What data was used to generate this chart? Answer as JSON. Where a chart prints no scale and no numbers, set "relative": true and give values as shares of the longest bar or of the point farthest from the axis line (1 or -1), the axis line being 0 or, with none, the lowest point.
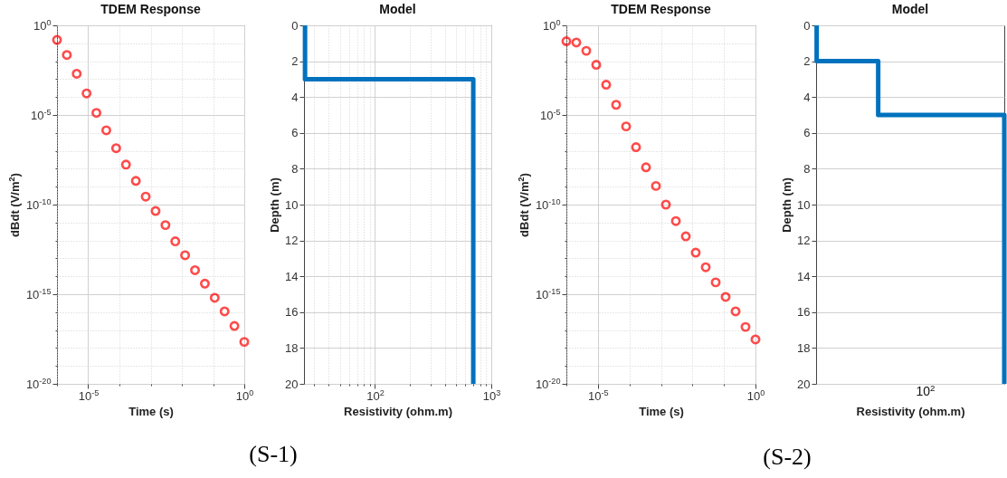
{
  "chart_data": [
    {
      "type": "scatter",
      "title": "TDEM Response",
      "xlabel": "Time (s)",
      "ylabel": "dBdt (V/m$^{2}$)",
      "color": "#ff0000",
      "marker": "circle",
      "log": "xy",
      "grid": true,
      "x": [
        1e-06,
        2.07e-06,
        4.28e-06,
        8.86e-06,
        1.83e-05,
        3.79e-05,
        7.85e-05,
        0.000162,
        0.000336,
        0.000695,
        0.00144,
        0.00298,
        0.00616,
        0.0127,
        0.0264,
        0.0546,
        0.113,
        0.234,
        0.483,
        1
      ],
      "values": [
        0.155,
        0.0224,
        0.002,
        0.00016,
        1.3e-05,
        1.4e-06,
        1.4e-07,
        1.7e-08,
        2.1e-09,
        2.8e-10,
        4.4e-11,
        7.2e-12,
        8.9e-13,
        1.5e-13,
        2.2e-14,
        3.9e-15,
        6.3e-16,
        1.1e-16,
        1.7e-17,
        2.2e-18
      ],
      "xlim": [
        1e-06,
        1
      ],
      "ylim": [
        1e-20,
        1
      ],
      "xticks": [
        {
          "value": 1e-06,
          "label": null
        },
        {
          "value": 1e-05,
          "label": "10$^{-5}$"
        },
        {
          "value": 0.0001,
          "label": null
        },
        {
          "value": 0.001,
          "label": null
        },
        {
          "value": 0.01,
          "label": null
        },
        {
          "value": 0.1,
          "label": null
        },
        {
          "value": 1,
          "label": "10$^{0}$"
        }
      ],
      "yticks": [
        {
          "value": 1e-20,
          "label": "10$^{-20}$"
        },
        {
          "value": 1e-19,
          "label": null
        },
        {
          "value": 1e-18,
          "label": null
        },
        {
          "value": 1e-17,
          "label": null
        },
        {
          "value": 1e-16,
          "label": null
        },
        {
          "value": 1e-15,
          "label": "10$^{-15}$"
        },
        {
          "value": 1e-14,
          "label": null
        },
        {
          "value": 1e-13,
          "label": null
        },
        {
          "value": 1e-12,
          "label": null
        },
        {
          "value": 1e-11,
          "label": null
        },
        {
          "value": 1e-10,
          "label": "10$^{-10}$"
        },
        {
          "value": 1e-09,
          "label": null
        },
        {
          "value": 1e-08,
          "label": null
        },
        {
          "value": 1e-07,
          "label": null
        },
        {
          "value": 1e-06,
          "label": null
        },
        {
          "value": 1e-05,
          "label": "10$^{-5}$"
        },
        {
          "value": 0.0001,
          "label": null
        },
        {
          "value": 0.001,
          "label": null
        },
        {
          "value": 0.01,
          "label": null
        },
        {
          "value": 0.1,
          "label": null
        },
        {
          "value": 1,
          "label": "10$^{0}$"
        }
      ],
      "annotations": [
        "(S-1)"
      ]
    },
    {
      "type": "line",
      "title": "Model",
      "xlabel": "Resistivity (ohm.m)",
      "ylabel": "Depth (m)",
      "color": "#0072bd",
      "line_style": "solid",
      "log": "x",
      "grid": true,
      "x": [
        25,
        25,
        700,
        700
      ],
      "values": [
        0,
        3,
        3,
        20
      ],
      "xlim": [
        24.5,
        1000
      ],
      "ylim": [
        20,
        0
      ],
      "xticks": [
        {
          "value": 30,
          "label": null
        },
        {
          "value": 40,
          "label": null
        },
        {
          "value": 50,
          "label": null
        },
        {
          "value": 60,
          "label": null
        },
        {
          "value": 70,
          "label": null
        },
        {
          "value": 80,
          "label": null
        },
        {
          "value": 90,
          "label": null
        },
        {
          "value": 100,
          "label": "10$^{2}$"
        },
        {
          "value": 200,
          "label": null
        },
        {
          "value": 300,
          "label": null
        },
        {
          "value": 400,
          "label": null
        },
        {
          "value": 500,
          "label": null
        },
        {
          "value": 600,
          "label": null
        },
        {
          "value": 700,
          "label": null
        },
        {
          "value": 800,
          "label": null
        },
        {
          "value": 900,
          "label": null
        },
        {
          "value": 1000,
          "label": "10$^{3}$"
        }
      ],
      "yticks": [
        0,
        2,
        4,
        6,
        8,
        10,
        12,
        14,
        16,
        18,
        20
      ]
    },
    {
      "type": "scatter",
      "title": "TDEM Response",
      "xlabel": "Time (s)",
      "ylabel": "dBdt (V/m$^{2}$)",
      "color": "#ff0000",
      "marker": "circle",
      "log": "xy",
      "grid": true,
      "x": [
        1e-06,
        2.07e-06,
        4.28e-06,
        8.86e-06,
        1.83e-05,
        3.79e-05,
        7.85e-05,
        0.000162,
        0.000336,
        0.000695,
        0.00144,
        0.00298,
        0.00616,
        0.0127,
        0.0264,
        0.0546,
        0.113,
        0.234,
        0.483,
        1
      ],
      "values": [
        0.13,
        0.11,
        0.038,
        0.0063,
        0.00049,
        3.7e-05,
        2.3e-06,
        1.6e-07,
        1.2e-08,
        1.1e-09,
        1e-10,
        1.2e-11,
        1.7e-12,
        2.1e-13,
        3.2e-14,
        4.6e-15,
        7.1e-16,
        1.1e-16,
        1.5e-17,
        3e-18
      ],
      "xlim": [
        1e-06,
        1
      ],
      "ylim": [
        1e-20,
        1
      ],
      "xticks": [
        {
          "value": 1e-06,
          "label": null
        },
        {
          "value": 1e-05,
          "label": "10$^{-5}$"
        },
        {
          "value": 0.0001,
          "label": null
        },
        {
          "value": 0.001,
          "label": null
        },
        {
          "value": 0.01,
          "label": null
        },
        {
          "value": 0.1,
          "label": null
        },
        {
          "value": 1,
          "label": "10$^{0}$"
        }
      ],
      "yticks": [
        {
          "value": 1e-20,
          "label": "10$^{-20}$"
        },
        {
          "value": 1e-19,
          "label": null
        },
        {
          "value": 1e-18,
          "label": null
        },
        {
          "value": 1e-17,
          "label": null
        },
        {
          "value": 1e-16,
          "label": null
        },
        {
          "value": 1e-15,
          "label": "10$^{-15}$"
        },
        {
          "value": 1e-14,
          "label": null
        },
        {
          "value": 1e-13,
          "label": null
        },
        {
          "value": 1e-12,
          "label": null
        },
        {
          "value": 1e-11,
          "label": null
        },
        {
          "value": 1e-10,
          "label": "10$^{-10}$"
        },
        {
          "value": 1e-09,
          "label": null
        },
        {
          "value": 1e-08,
          "label": null
        },
        {
          "value": 1e-07,
          "label": null
        },
        {
          "value": 1e-06,
          "label": null
        },
        {
          "value": 1e-05,
          "label": "10$^{-5}$"
        },
        {
          "value": 0.0001,
          "label": null
        },
        {
          "value": 0.001,
          "label": null
        },
        {
          "value": 0.01,
          "label": null
        },
        {
          "value": 0.1,
          "label": null
        },
        {
          "value": 1,
          "label": "10$^{0}$"
        }
      ],
      "annotations": [
        "(S-2)"
      ]
    },
    {
      "type": "line",
      "title": "Model",
      "xlabel": "Resistivity (ohm.m)",
      "ylabel": "Depth (m)",
      "color": "#0072bd",
      "line_style": "solid",
      "grid": true,
      "orientation": "horizontal",
      "relative": true,
      "x": [
        0,
        2,
        2,
        5,
        5,
        20
      ],
      "values": [
        0.003,
        0.003,
        0.33,
        0.33,
        1,
        1
      ],
      "ylim": [
        20,
        0
      ],
      "yticks": [
        0,
        2,
        4,
        6,
        8,
        10,
        12,
        14,
        16,
        18,
        20
      ],
      "annotations": [
        "10$^{2}$"
      ]
    }
  ]
}
